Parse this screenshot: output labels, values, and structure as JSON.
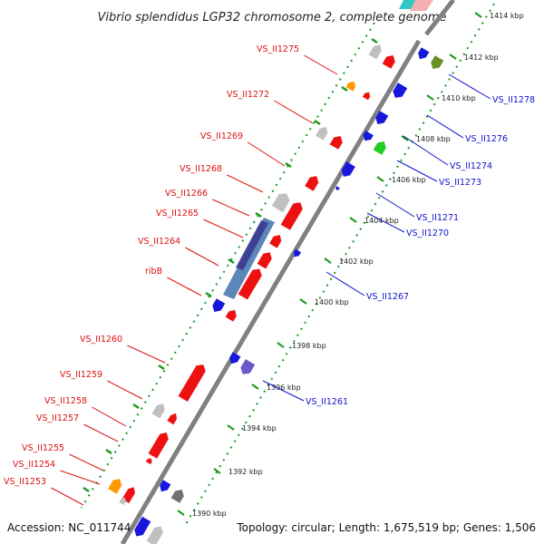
{
  "title": "Vibrio splendidus LGP32 chromosome 2, complete genome",
  "footer": {
    "accession": "Accession: NC_011744",
    "summary": "Topology: circular; Length: 1,675,519 bp; Genes: 1,506"
  },
  "ticks": [
    "1390 kbp",
    "1392 kbp",
    "1394 kbp",
    "1396 kbp",
    "1398 kbp",
    "1400 kbp",
    "1402 kbp",
    "1404 kbp",
    "1406 kbp",
    "1408 kbp",
    "1410 kbp",
    "1412 kbp",
    "1414 kbp"
  ],
  "forward_labels": [
    "VS_II1275",
    "VS_II1272",
    "VS_II1269",
    "VS_II1268",
    "VS_II1266",
    "VS_II1265",
    "VS_II1264",
    "ribB",
    "VS_II1260",
    "VS_II1259",
    "VS_II1258",
    "VS_II1257",
    "VS_II1255",
    "VS_II1254",
    "VS_II1253"
  ],
  "reverse_labels": [
    "VS_II1278",
    "VS_II1276",
    "VS_II1274",
    "VS_II1273",
    "VS_II1271",
    "VS_II1270",
    "VS_II1267",
    "VS_II1261"
  ],
  "colors": {
    "forward_gene": "#ee1111",
    "reverse_gene": "#1818dd",
    "grey_gene": "#c0c0c0",
    "orange_gene": "#ff9900",
    "green_gene": "#22cc22",
    "olive_gene": "#6b8e23",
    "backbone": "#808080",
    "dots": "#1a9a1a",
    "feature_blue": "#4a78b0",
    "feature_indigo": "#3a3a90"
  }
}
